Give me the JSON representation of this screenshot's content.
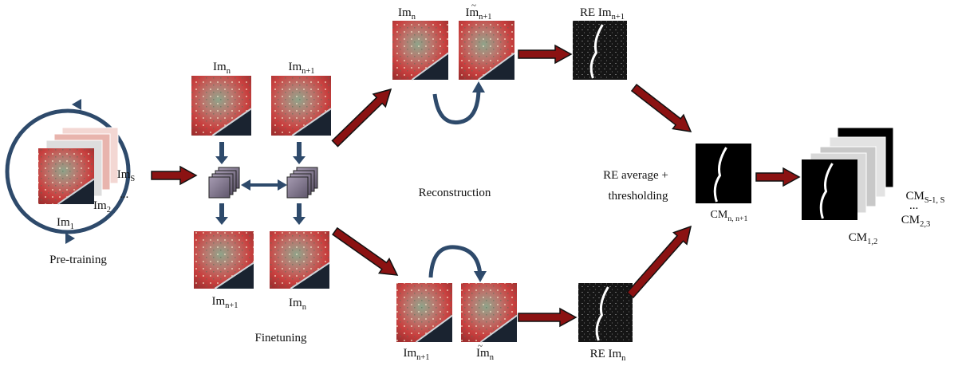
{
  "pretraining": {
    "images": [
      {
        "base": "Im",
        "sub": "S"
      },
      {
        "base": "Im",
        "sub": "2"
      },
      {
        "base": "Im",
        "sub": "1"
      }
    ],
    "ellipsis": "...",
    "caption": "Pre-training"
  },
  "finetuning": {
    "top": [
      {
        "base": "Im",
        "sub": "n"
      },
      {
        "base": "Im",
        "sub": "n+1"
      }
    ],
    "bottom": [
      {
        "base": "Im",
        "sub": "n+1"
      },
      {
        "base": "Im",
        "sub": "n"
      }
    ],
    "caption": "Finetuning"
  },
  "reconstruction": {
    "caption": "Reconstruction",
    "top": {
      "input": {
        "base": "Im",
        "sub": "n"
      },
      "output": {
        "base": "Im",
        "sub": "n+1",
        "accent": "~"
      },
      "error": {
        "base": "RE Im",
        "sub": "n+1"
      }
    },
    "bottom": {
      "input": {
        "base": "Im",
        "sub": "n+1"
      },
      "output": {
        "base": "Im",
        "sub": "n",
        "accent": "~"
      },
      "error": {
        "base": "RE Im",
        "sub": "n"
      }
    }
  },
  "change_map": {
    "caption_lines": [
      "RE average +",
      "thresholding"
    ],
    "output": {
      "base": "CM",
      "sub": "n, n+1"
    },
    "series": [
      {
        "base": "CM",
        "sub": "S-1, S"
      },
      {
        "base": "CM",
        "sub": "2,3"
      },
      {
        "base": "CM",
        "sub": "1,2"
      }
    ],
    "ellipsis": "..."
  }
}
